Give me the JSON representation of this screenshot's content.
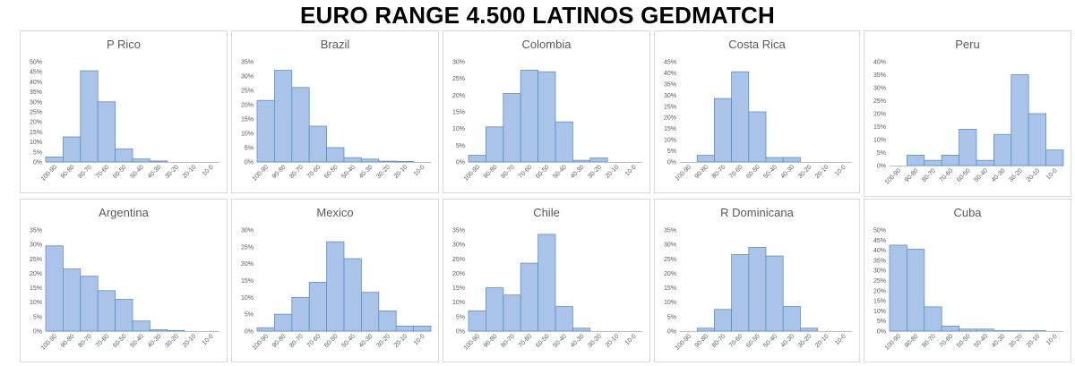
{
  "title": "EURO RANGE 4.500 LATINOS GEDMATCH",
  "colors": {
    "bar_fill": "#a9c4e8",
    "bar_stroke": "#5b8fcf",
    "axis": "#bfbfbf",
    "text": "#595959"
  },
  "chart_data": [
    {
      "type": "bar",
      "title": "P Rico",
      "categories": [
        "100-90",
        "90-80",
        "80-70",
        "70-60",
        "60-50",
        "50-40",
        "40-30",
        "30-20",
        "20-10",
        "10-0"
      ],
      "values": [
        2.5,
        12.5,
        45.5,
        30,
        6.5,
        1.5,
        0.5,
        0,
        0,
        0
      ],
      "yticks": [
        "0%",
        "5%",
        "10%",
        "15%",
        "20%",
        "25%",
        "30%",
        "35%",
        "40%",
        "45%",
        "50%"
      ],
      "ylim": [
        0,
        50
      ]
    },
    {
      "type": "bar",
      "title": "Brazil",
      "categories": [
        "100-90",
        "90-80",
        "80-70",
        "70-60",
        "60-50",
        "50-40",
        "40-30",
        "30-20",
        "20-10",
        "10-0"
      ],
      "values": [
        21.5,
        32,
        26,
        12.5,
        5,
        1.5,
        1,
        0.3,
        0.2,
        0
      ],
      "yticks": [
        "0%",
        "5%",
        "10%",
        "15%",
        "20%",
        "25%",
        "30%",
        "35%"
      ],
      "ylim": [
        0,
        35
      ]
    },
    {
      "type": "bar",
      "title": "Colombia",
      "categories": [
        "100-90",
        "90-80",
        "80-70",
        "70-60",
        "60-50",
        "50-40",
        "40-30",
        "30-20",
        "20-10",
        "10-0"
      ],
      "values": [
        2,
        10.5,
        20.5,
        27.5,
        27,
        12,
        0.5,
        1.2,
        0,
        0
      ],
      "yticks": [
        "0%",
        "5%",
        "10%",
        "15%",
        "20%",
        "25%",
        "30%"
      ],
      "ylim": [
        0,
        30
      ]
    },
    {
      "type": "bar",
      "title": "Costa Rica",
      "categories": [
        "100-90",
        "90-80",
        "80-70",
        "70-60",
        "60-50",
        "50-40",
        "40-30",
        "30-20",
        "20-10",
        "10-0"
      ],
      "values": [
        0,
        3,
        28.5,
        40.5,
        22.5,
        2,
        2,
        0,
        0,
        0
      ],
      "yticks": [
        "0%",
        "5%",
        "10%",
        "15%",
        "20%",
        "25%",
        "30%",
        "35%",
        "40%",
        "45%"
      ],
      "ylim": [
        0,
        45
      ]
    },
    {
      "type": "bar",
      "title": "Peru",
      "categories": [
        "100-90",
        "90-80",
        "80-70",
        "70-60",
        "60-50",
        "50-40",
        "40-30",
        "30-20",
        "20-10",
        "10-0"
      ],
      "values": [
        0,
        4,
        2,
        4,
        14,
        2,
        12,
        35,
        20,
        6
      ],
      "yticks": [
        "0%",
        "5%",
        "10%",
        "15%",
        "20%",
        "25%",
        "30%",
        "35%",
        "40%"
      ],
      "ylim": [
        0,
        40
      ]
    },
    {
      "type": "bar",
      "title": "Argentina",
      "categories": [
        "100-90",
        "90-80",
        "80-70",
        "70-60",
        "60-50",
        "50-40",
        "40-30",
        "30-20",
        "20-10",
        "10-0"
      ],
      "values": [
        29.5,
        21.5,
        19,
        14,
        11,
        3.5,
        0.5,
        0.2,
        0,
        0
      ],
      "yticks": [
        "0%",
        "5%",
        "10%",
        "15%",
        "20%",
        "25%",
        "30%",
        "35%"
      ],
      "ylim": [
        0,
        35
      ]
    },
    {
      "type": "bar",
      "title": "Mexico",
      "categories": [
        "100-90",
        "90-80",
        "80-70",
        "70-60",
        "60-50",
        "50-40",
        "40-30",
        "30-20",
        "20-10",
        "10-0"
      ],
      "values": [
        1,
        5,
        10,
        14.5,
        26.5,
        21.5,
        11.5,
        6,
        1.5,
        1.5
      ],
      "yticks": [
        "0%",
        "5%",
        "10%",
        "15%",
        "20%",
        "25%",
        "30%"
      ],
      "ylim": [
        0,
        30
      ]
    },
    {
      "type": "bar",
      "title": "Chile",
      "categories": [
        "100-90",
        "90-80",
        "80-70",
        "70-60",
        "60-50",
        "50-40",
        "40-30",
        "30-20",
        "20-10",
        "10-0"
      ],
      "values": [
        7,
        15,
        12.5,
        23.5,
        33.5,
        8.5,
        1,
        0,
        0,
        0
      ],
      "yticks": [
        "0%",
        "5%",
        "10%",
        "15%",
        "20%",
        "25%",
        "30%",
        "35%"
      ],
      "ylim": [
        0,
        35
      ]
    },
    {
      "type": "bar",
      "title": "R Dominicana",
      "categories": [
        "100-90",
        "90-80",
        "80-70",
        "70-60",
        "60-50",
        "50-40",
        "40-30",
        "30-20",
        "20-10",
        "10-0"
      ],
      "values": [
        0,
        1,
        7.5,
        26.5,
        29,
        26,
        8.5,
        1,
        0,
        0
      ],
      "yticks": [
        "0%",
        "5%",
        "10%",
        "15%",
        "20%",
        "25%",
        "30%",
        "35%"
      ],
      "ylim": [
        0,
        35
      ]
    },
    {
      "type": "bar",
      "title": "Cuba",
      "categories": [
        "100-90",
        "90-80",
        "80-70",
        "70-60",
        "60-50",
        "50-40",
        "40-30",
        "30-20",
        "20-10",
        "10-0"
      ],
      "values": [
        42.5,
        40.5,
        12,
        2.5,
        1,
        1,
        0.2,
        0.2,
        0.2,
        0
      ],
      "yticks": [
        "0%",
        "5%",
        "10%",
        "15%",
        "20%",
        "25%",
        "30%",
        "35%",
        "40%",
        "45%",
        "50%"
      ],
      "ylim": [
        0,
        50
      ]
    }
  ]
}
